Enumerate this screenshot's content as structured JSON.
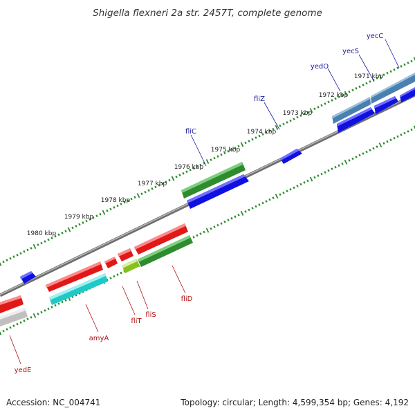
{
  "title": "Shigella flexneri 2a str. 2457T, complete genome",
  "footer": {
    "accession": "Accession: NC_004741",
    "summary": "Topology: circular; Length: 4,599,354 bp; Genes: 4,192"
  },
  "ruler_labels": [
    "1980 kbp",
    "1979 kbp",
    "1978 kbp",
    "1977 kbp",
    "1976 kbp",
    "1975 kbp",
    "1974 kbp",
    "1973 kbp",
    "1972 kbp",
    "1971 kbp"
  ],
  "colors": {
    "backbone": "#808080",
    "tick": "#2a8a2a",
    "forward_label": "#1a1aa0",
    "reverse_label": "#b01010",
    "blue_gene": "#1010e0",
    "steel_gene": "#4a80b0",
    "green_gene": "#2e8b2e",
    "red_gene": "#e01818",
    "cyan_gene": "#20c8c8",
    "grey_gene": "#c0c0c0",
    "lime_gene": "#88c020"
  },
  "forward_labels": [
    "yecC",
    "yecS",
    "yedO",
    "fliZ",
    "fliC"
  ],
  "reverse_labels": [
    "fliD",
    "fliS",
    "fliT",
    "amyA",
    "yedE"
  ]
}
